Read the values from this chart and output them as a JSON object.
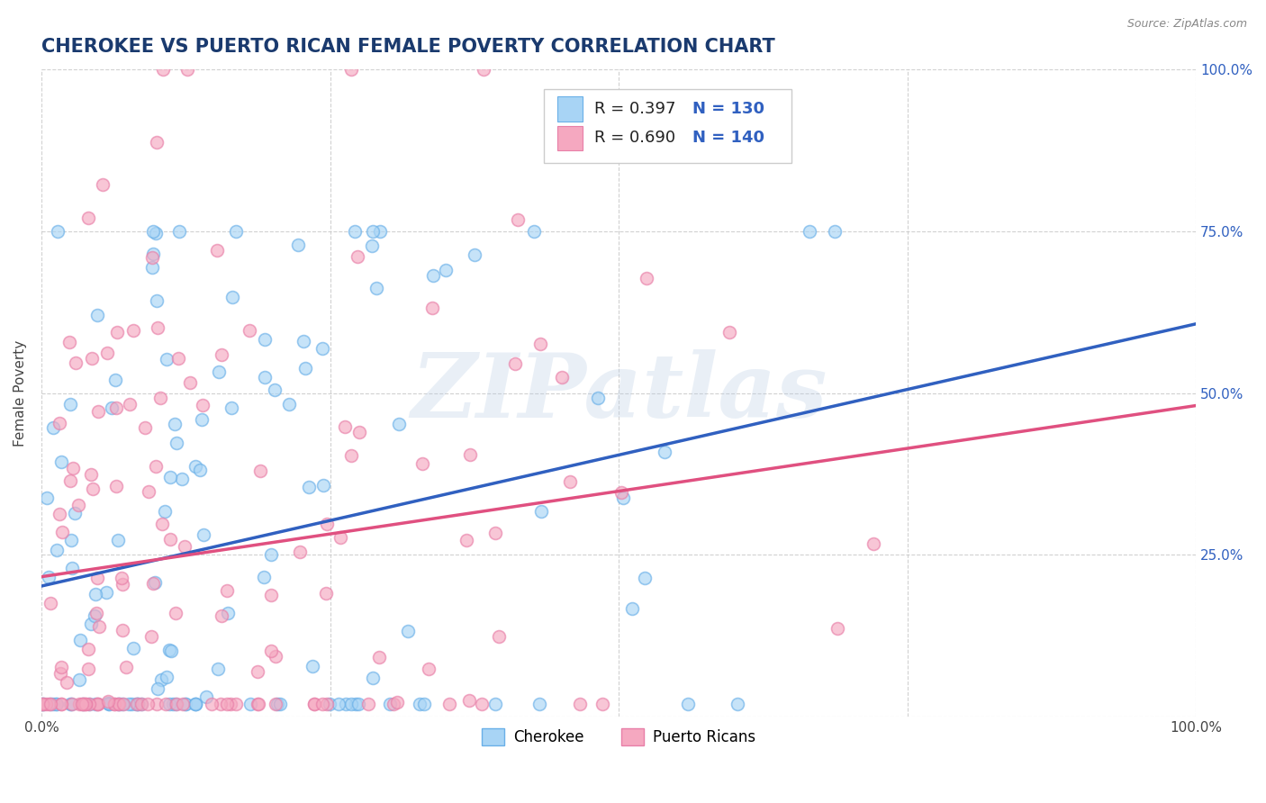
{
  "title": "CHEROKEE VS PUERTO RICAN FEMALE POVERTY CORRELATION CHART",
  "source": "Source: ZipAtlas.com",
  "ylabel": "Female Poverty",
  "xlim": [
    0,
    1
  ],
  "ylim": [
    0,
    1
  ],
  "xticks": [
    0,
    0.25,
    0.5,
    0.75,
    1.0
  ],
  "yticks": [
    0,
    0.25,
    0.5,
    0.75,
    1.0
  ],
  "xticklabels": [
    "0.0%",
    "",
    "",
    "",
    "100.0%"
  ],
  "yticklabels_right": [
    "",
    "25.0%",
    "50.0%",
    "75.0%",
    "100.0%"
  ],
  "legend_labels": [
    "Cherokee",
    "Puerto Ricans"
  ],
  "blue_fill": "#a8d4f5",
  "pink_fill": "#f5a8c0",
  "blue_edge": "#6ab0e8",
  "pink_edge": "#e87fa8",
  "blue_line_color": "#3060c0",
  "pink_line_color": "#e05080",
  "blue_r": 0.397,
  "blue_n": 130,
  "pink_r": 0.69,
  "pink_n": 140,
  "title_color": "#1a3a6e",
  "watermark": "ZIPatlas",
  "background_color": "#ffffff",
  "grid_color": "#cccccc",
  "title_fontsize": 15,
  "axis_label_fontsize": 11,
  "tick_fontsize": 11,
  "source_fontsize": 9
}
